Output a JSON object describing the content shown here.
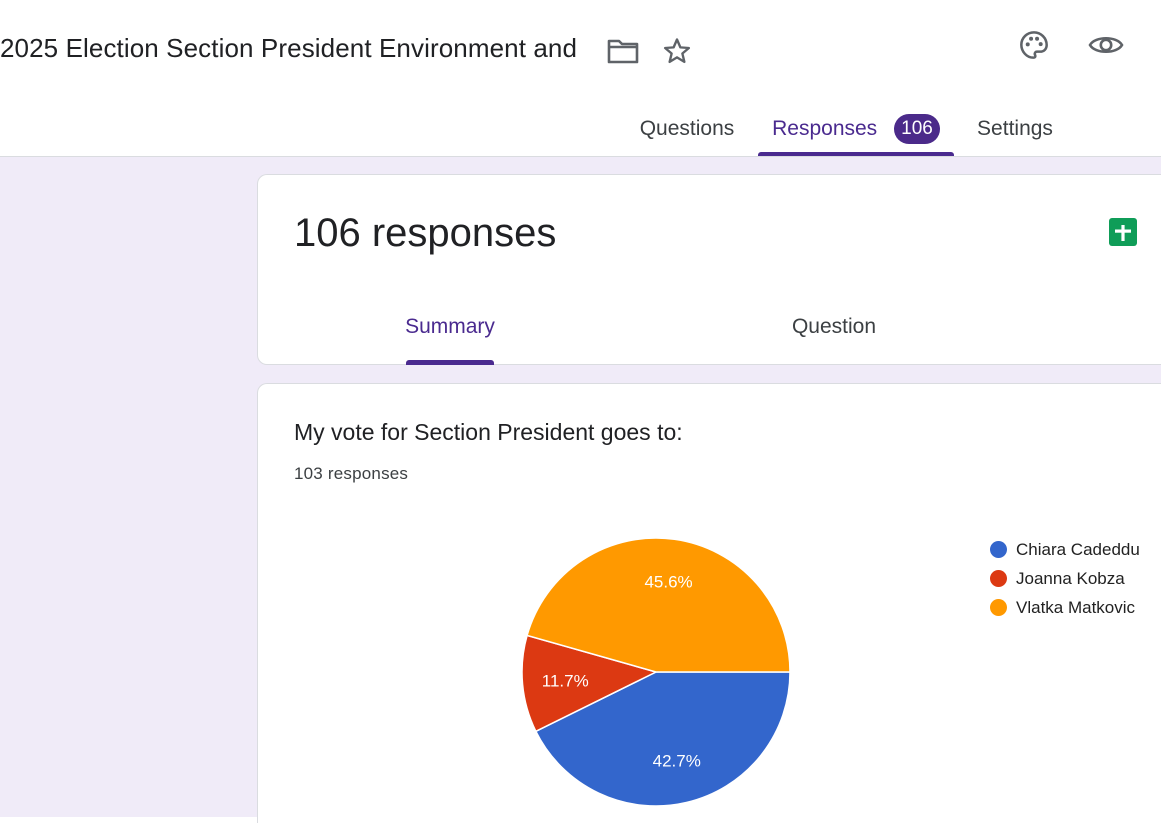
{
  "header": {
    "form_title": "2025 Election Section President Environment and",
    "icons": [
      "folder-icon",
      "star-icon",
      "palette-icon",
      "eye-icon"
    ]
  },
  "tabs": {
    "questions": "Questions",
    "responses": "Responses",
    "responses_badge": "106",
    "settings": "Settings",
    "active": "Responses"
  },
  "summary_card": {
    "title": "106 responses",
    "sheets_icon": "google-sheets-icon",
    "subtabs": {
      "summary": "Summary",
      "question": "Question",
      "active": "Summary"
    }
  },
  "question_card": {
    "title": "My vote for Section President goes to:",
    "response_count": "103 responses"
  },
  "colors": {
    "accent": "#4a2a8f",
    "canvas": "#f0ebf8",
    "sheets_green": "#0f9d58"
  },
  "chart_data": {
    "type": "pie",
    "slices": [
      {
        "name": "Chiara Cadeddu",
        "value": 42.7,
        "label": "42.7%",
        "color": "#3366cc"
      },
      {
        "name": "Joanna Kobza",
        "value": 11.7,
        "label": "11.7%",
        "color": "#dc3912"
      },
      {
        "name": "Vlatka Matkovic",
        "value": 45.6,
        "label": "45.6%",
        "color": "#ff9900"
      }
    ],
    "legend_position": "right"
  }
}
